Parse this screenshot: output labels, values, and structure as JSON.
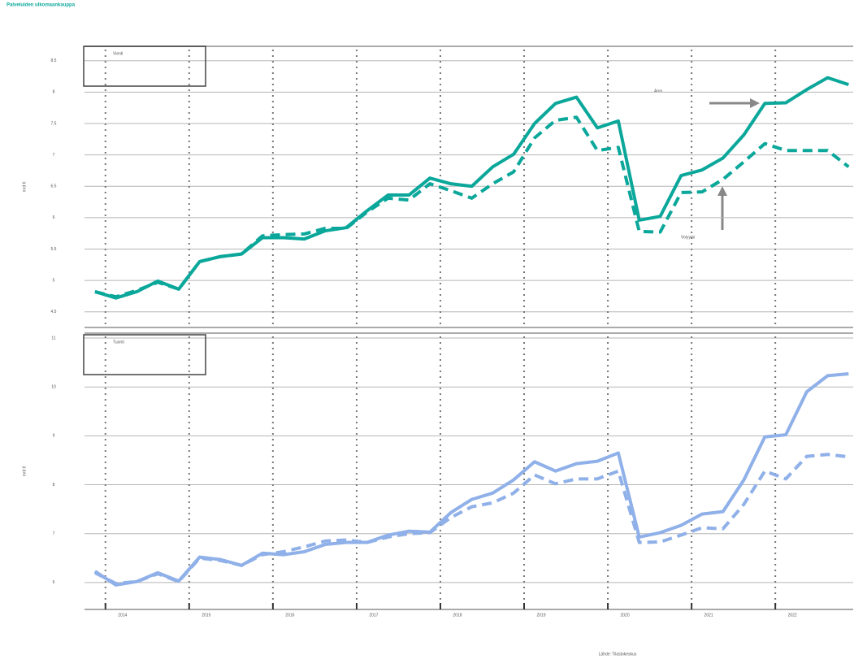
{
  "title": "Palveluiden ulkomaankauppa",
  "source": "Lähde: Tilastokeskus",
  "chart_data": [
    {
      "type": "line",
      "legend_title": "Vienti",
      "ylabel": "mrd €",
      "x": [
        2013.875,
        2014.125,
        2014.375,
        2014.625,
        2014.875,
        2015.125,
        2015.375,
        2015.625,
        2015.875,
        2016.125,
        2016.375,
        2016.625,
        2016.875,
        2017.125,
        2017.375,
        2017.625,
        2017.875,
        2018.125,
        2018.375,
        2018.625,
        2018.875,
        2019.125,
        2019.375,
        2019.625,
        2019.875,
        2020.125,
        2020.375,
        2020.625,
        2020.875,
        2021.125,
        2021.375,
        2021.625,
        2021.875,
        2022.125,
        2022.375,
        2022.625,
        2022.875
      ],
      "xlim": [
        2013.75,
        2022.93
      ],
      "xticks": [
        2014,
        2015,
        2016,
        2017,
        2018,
        2019,
        2020,
        2021,
        2022
      ],
      "ylim": [
        4.25,
        8.73
      ],
      "yticks": [
        4.5,
        5,
        5.5,
        6,
        6.5,
        7,
        7.5,
        8,
        8.5
      ],
      "grid": true,
      "series": [
        {
          "name": "Arvo",
          "color": "#0aa79a",
          "dash": false,
          "values": [
            4.82,
            4.72,
            4.82,
            4.99,
            4.86,
            5.3,
            5.38,
            5.42,
            5.68,
            5.68,
            5.66,
            5.79,
            5.84,
            6.11,
            6.36,
            6.36,
            6.63,
            6.54,
            6.5,
            6.81,
            7.01,
            7.5,
            7.82,
            7.92,
            7.43,
            7.54,
            5.96,
            6.02,
            6.67,
            6.76,
            6.95,
            7.32,
            7.82,
            7.83,
            8.04,
            8.23,
            8.12
          ]
        },
        {
          "name": "Volyymi",
          "color": "#0aa79a",
          "dash": true,
          "values": [
            4.82,
            4.74,
            4.84,
            4.97,
            4.86,
            5.3,
            5.38,
            5.42,
            5.71,
            5.73,
            5.74,
            5.83,
            5.83,
            6.09,
            6.31,
            6.28,
            6.54,
            6.43,
            6.31,
            6.54,
            6.73,
            7.27,
            7.55,
            7.6,
            7.07,
            7.12,
            5.78,
            5.77,
            6.4,
            6.41,
            6.61,
            6.89,
            7.18,
            7.07,
            7.07,
            7.07,
            6.81
          ]
        }
      ]
    },
    {
      "type": "line",
      "legend_title": "Tuonti",
      "ylabel": "mrd €",
      "x": [
        2013.875,
        2014.125,
        2014.375,
        2014.625,
        2014.875,
        2015.125,
        2015.375,
        2015.625,
        2015.875,
        2016.125,
        2016.375,
        2016.625,
        2016.875,
        2017.125,
        2017.375,
        2017.625,
        2017.875,
        2018.125,
        2018.375,
        2018.625,
        2018.875,
        2019.125,
        2019.375,
        2019.625,
        2019.875,
        2020.125,
        2020.375,
        2020.625,
        2020.875,
        2021.125,
        2021.375,
        2021.625,
        2021.875,
        2022.125,
        2022.375,
        2022.625,
        2022.875
      ],
      "xlim": [
        2013.75,
        2022.93
      ],
      "xticks": [
        2014,
        2015,
        2016,
        2017,
        2018,
        2019,
        2020,
        2021,
        2022
      ],
      "ylim": [
        5.45,
        11.1
      ],
      "yticks": [
        6,
        7,
        8,
        9,
        10,
        11
      ],
      "grid": true,
      "series": [
        {
          "color": "#8fb0e8",
          "dash": false,
          "values": [
            6.23,
            5.95,
            6.02,
            6.2,
            6.03,
            6.52,
            6.47,
            6.35,
            6.6,
            6.57,
            6.63,
            6.78,
            6.82,
            6.82,
            6.97,
            7.05,
            7.03,
            7.43,
            7.7,
            7.83,
            8.1,
            8.47,
            8.28,
            8.43,
            8.48,
            8.65,
            6.93,
            7.02,
            7.17,
            7.4,
            7.45,
            8.1,
            8.98,
            9.02,
            9.9,
            10.23,
            10.27
          ]
        },
        {
          "color": "#8fb0e8",
          "dash": true,
          "values": [
            6.2,
            5.98,
            6.02,
            6.18,
            6.02,
            6.5,
            6.45,
            6.35,
            6.57,
            6.63,
            6.73,
            6.85,
            6.87,
            6.82,
            6.93,
            7.0,
            7.02,
            7.33,
            7.55,
            7.63,
            7.83,
            8.2,
            8.02,
            8.12,
            8.12,
            8.28,
            6.82,
            6.83,
            6.97,
            7.12,
            7.1,
            7.6,
            8.28,
            8.12,
            8.58,
            8.62,
            8.57
          ]
        }
      ]
    }
  ]
}
